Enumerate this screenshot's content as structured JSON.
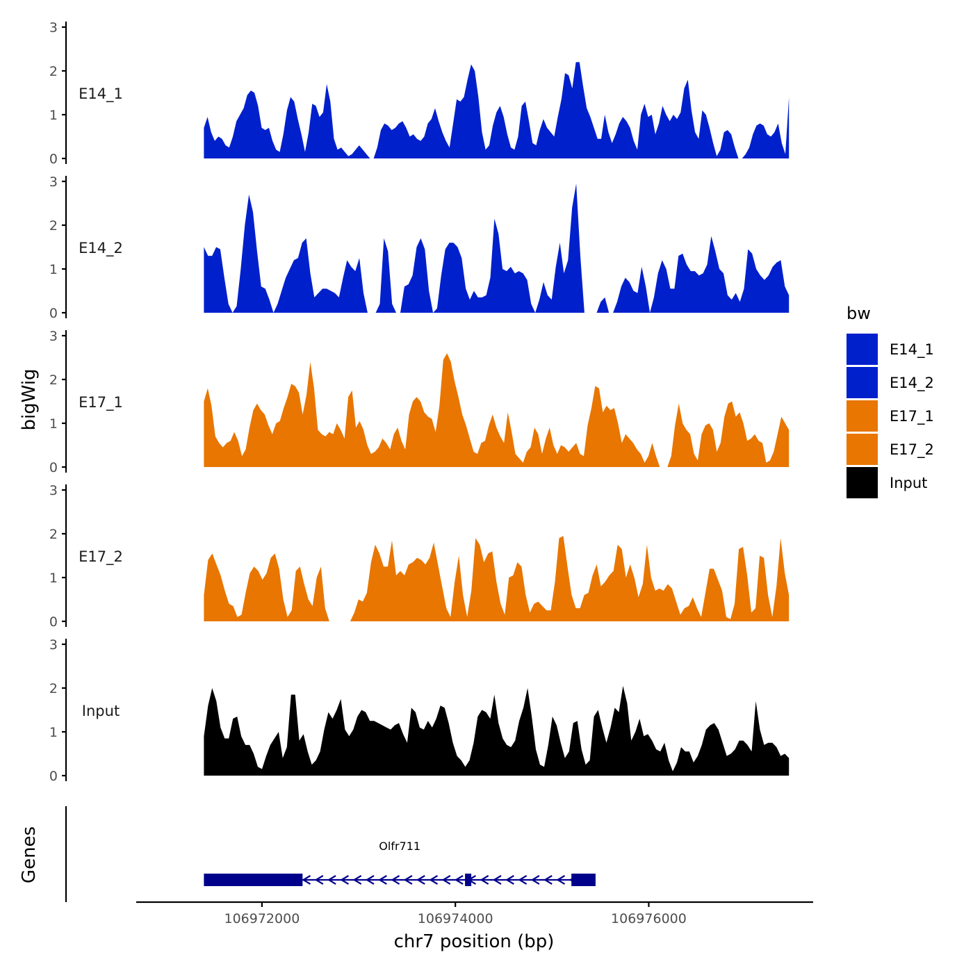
{
  "chart_data": {
    "type": "area",
    "chromosome": "chr7",
    "x_range": [
      106971400,
      106977450
    ],
    "xlim": [
      106970700,
      106977700
    ],
    "x_ticks": [
      106972000,
      106974000,
      106976000
    ],
    "x_tick_labels": [
      "106972000",
      "106974000",
      "106976000"
    ],
    "xlabel": "chr7 position (bp)",
    "ylabel": "bigWig",
    "ylim": [
      0,
      3
    ],
    "y_ticks": [
      0,
      1,
      2,
      3
    ],
    "y_tick_labels": [
      "0",
      "1",
      "2",
      "3"
    ],
    "track_panel_label": "Genes",
    "legend": {
      "title": "bw",
      "entries": [
        {
          "label": "E14_1",
          "color": "#0020CC"
        },
        {
          "label": "E14_2",
          "color": "#0020CC"
        },
        {
          "label": "E17_1",
          "color": "#E87600"
        },
        {
          "label": "E17_2",
          "color": "#E87600"
        },
        {
          "label": "Input",
          "color": "#000000"
        }
      ]
    },
    "series": [
      {
        "name": "E14_1",
        "color": "#0020CC",
        "values": [
          0.7,
          0.95,
          0.6,
          0.4,
          0.5,
          0.45,
          0.3,
          0.25,
          0.5,
          0.85,
          1.0,
          1.15,
          1.45,
          1.55,
          1.5,
          1.2,
          0.7,
          0.65,
          0.7,
          0.4,
          0.2,
          0.15,
          0.55,
          1.1,
          1.4,
          1.3,
          0.9,
          0.55,
          0.15,
          0.6,
          1.25,
          1.2,
          0.95,
          1.05,
          1.7,
          1.3,
          0.45,
          0.2,
          0.25,
          0.15,
          0.05,
          0.1,
          0.2,
          0.3,
          0.2,
          0.1,
          0.0,
          0.0,
          0.25,
          0.65,
          0.8,
          0.75,
          0.65,
          0.7,
          0.8,
          0.85,
          0.7,
          0.5,
          0.55,
          0.45,
          0.4,
          0.5,
          0.8,
          0.9,
          1.15,
          0.85,
          0.6,
          0.4,
          0.25,
          0.8,
          1.35,
          1.3,
          1.4,
          1.8,
          2.15,
          2.0,
          1.4,
          0.6,
          0.2,
          0.3,
          0.75,
          1.05,
          1.2,
          0.95,
          0.55,
          0.25,
          0.2,
          0.5,
          1.2,
          1.3,
          0.85,
          0.35,
          0.3,
          0.65,
          0.9,
          0.7,
          0.6,
          0.5,
          0.95,
          1.35,
          1.95,
          1.9,
          1.6,
          2.2,
          2.2,
          1.65,
          1.15,
          0.95,
          0.7,
          0.45,
          0.45,
          1.0,
          0.6,
          0.35,
          0.55,
          0.8,
          0.95,
          0.85,
          0.7,
          0.4,
          0.2,
          1.0,
          1.25,
          0.95,
          1.0,
          0.55,
          0.8,
          1.2,
          1.0,
          0.85,
          1.0,
          0.9,
          1.05,
          1.6,
          1.8,
          1.1,
          0.6,
          0.45,
          1.1,
          1.0,
          0.7,
          0.35,
          0.05,
          0.2,
          0.6,
          0.65,
          0.55,
          0.25,
          0.0,
          0.0,
          0.1,
          0.25,
          0.55,
          0.75,
          0.8,
          0.75,
          0.55,
          0.5,
          0.6,
          0.8,
          0.35,
          0.1,
          1.4
        ]
      },
      {
        "name": "E14_2",
        "color": "#0020CC",
        "values": [
          1.5,
          1.3,
          1.3,
          1.5,
          1.45,
          0.8,
          0.2,
          0.0,
          0.15,
          1.0,
          2.0,
          2.7,
          2.3,
          1.4,
          0.6,
          0.55,
          0.3,
          0.0,
          0.2,
          0.5,
          0.8,
          1.0,
          1.2,
          1.25,
          1.6,
          1.7,
          0.9,
          0.35,
          0.45,
          0.55,
          0.55,
          0.5,
          0.45,
          0.35,
          0.8,
          1.2,
          1.05,
          0.95,
          1.25,
          0.45,
          0.0,
          0.0,
          0.0,
          0.2,
          1.7,
          1.4,
          0.2,
          0.0,
          0.0,
          0.6,
          0.65,
          0.85,
          1.5,
          1.7,
          1.45,
          0.5,
          0.0,
          0.1,
          0.85,
          1.45,
          1.6,
          1.6,
          1.5,
          1.25,
          0.55,
          0.3,
          0.5,
          0.35,
          0.35,
          0.4,
          0.8,
          2.15,
          1.8,
          1.0,
          0.95,
          1.05,
          0.9,
          0.95,
          0.9,
          0.75,
          0.2,
          0.0,
          0.3,
          0.7,
          0.4,
          0.3,
          1.05,
          1.6,
          0.9,
          1.2,
          2.4,
          2.95,
          1.3,
          0.0,
          0.0,
          0.0,
          0.0,
          0.25,
          0.35,
          0.0,
          0.0,
          0.25,
          0.6,
          0.8,
          0.7,
          0.5,
          0.45,
          1.05,
          0.6,
          0.0,
          0.35,
          0.9,
          1.2,
          1.0,
          0.55,
          0.55,
          1.3,
          1.35,
          1.1,
          0.95,
          0.95,
          0.85,
          0.9,
          1.1,
          1.75,
          1.4,
          1.0,
          0.9,
          0.4,
          0.3,
          0.45,
          0.25,
          0.55,
          1.45,
          1.35,
          1.0,
          0.85,
          0.75,
          0.85,
          1.05,
          1.15,
          1.2,
          0.6,
          0.4
        ]
      },
      {
        "name": "E17_1",
        "color": "#E87600",
        "values": [
          1.5,
          1.8,
          1.4,
          0.7,
          0.55,
          0.45,
          0.55,
          0.6,
          0.8,
          0.6,
          0.25,
          0.4,
          0.9,
          1.3,
          1.45,
          1.3,
          1.2,
          0.95,
          0.75,
          1.0,
          1.05,
          1.35,
          1.6,
          1.9,
          1.85,
          1.7,
          1.2,
          1.65,
          2.4,
          1.8,
          0.85,
          0.75,
          0.7,
          0.8,
          0.75,
          1.0,
          0.85,
          0.65,
          1.6,
          1.75,
          0.9,
          1.05,
          0.85,
          0.5,
          0.3,
          0.35,
          0.45,
          0.65,
          0.55,
          0.4,
          0.75,
          0.9,
          0.6,
          0.4,
          1.2,
          1.5,
          1.6,
          1.5,
          1.25,
          1.15,
          1.1,
          0.8,
          1.4,
          2.45,
          2.6,
          2.4,
          1.95,
          1.6,
          1.2,
          0.95,
          0.65,
          0.35,
          0.3,
          0.55,
          0.6,
          0.95,
          1.2,
          0.9,
          0.7,
          0.55,
          1.25,
          0.8,
          0.3,
          0.2,
          0.1,
          0.35,
          0.45,
          0.9,
          0.75,
          0.3,
          0.65,
          0.9,
          0.5,
          0.3,
          0.5,
          0.45,
          0.35,
          0.45,
          0.55,
          0.3,
          0.25,
          0.95,
          1.35,
          1.85,
          1.8,
          1.25,
          1.4,
          1.3,
          1.35,
          1.0,
          0.55,
          0.75,
          0.65,
          0.55,
          0.4,
          0.3,
          0.1,
          0.25,
          0.55,
          0.25,
          0.0,
          0.0,
          0.0,
          0.25,
          0.95,
          1.45,
          1.0,
          0.85,
          0.75,
          0.3,
          0.15,
          0.75,
          0.95,
          1.0,
          0.85,
          0.35,
          0.55,
          1.15,
          1.45,
          1.5,
          1.15,
          1.25,
          1.0,
          0.6,
          0.65,
          0.75,
          0.6,
          0.55,
          0.1,
          0.15,
          0.35,
          0.75,
          1.15,
          1.0,
          0.85
        ]
      },
      {
        "name": "E17_2",
        "color": "#E87600",
        "values": [
          0.6,
          1.4,
          1.55,
          1.3,
          1.05,
          0.7,
          0.4,
          0.35,
          0.1,
          0.15,
          0.65,
          1.1,
          1.25,
          1.15,
          0.95,
          1.1,
          1.45,
          1.55,
          1.2,
          0.5,
          0.1,
          0.25,
          1.15,
          1.25,
          0.85,
          0.5,
          0.35,
          1.0,
          1.25,
          0.3,
          0.0,
          0.0,
          0.0,
          0.0,
          0.0,
          0.0,
          0.2,
          0.5,
          0.45,
          0.65,
          1.35,
          1.75,
          1.55,
          1.25,
          1.25,
          1.85,
          1.05,
          1.15,
          1.05,
          1.3,
          1.35,
          1.45,
          1.4,
          1.3,
          1.45,
          1.8,
          1.3,
          0.8,
          0.3,
          0.1,
          0.9,
          1.5,
          0.6,
          0.1,
          0.7,
          1.9,
          1.75,
          1.35,
          1.55,
          1.6,
          0.9,
          0.4,
          0.15,
          1.0,
          1.05,
          1.35,
          1.25,
          0.6,
          0.2,
          0.4,
          0.45,
          0.35,
          0.25,
          0.25,
          0.9,
          1.9,
          1.95,
          1.25,
          0.6,
          0.3,
          0.3,
          0.6,
          0.65,
          1.05,
          1.3,
          0.8,
          0.9,
          1.05,
          1.15,
          1.75,
          1.65,
          1.0,
          1.3,
          1.0,
          0.55,
          0.85,
          1.75,
          1.0,
          0.7,
          0.75,
          0.7,
          0.85,
          0.75,
          0.45,
          0.15,
          0.3,
          0.35,
          0.55,
          0.3,
          0.1,
          0.65,
          1.2,
          1.2,
          0.95,
          0.7,
          0.1,
          0.05,
          0.4,
          1.65,
          1.7,
          1.05,
          0.2,
          0.3,
          1.5,
          1.45,
          0.6,
          0.1,
          0.8,
          1.9,
          1.1,
          0.6
        ]
      },
      {
        "name": "Input",
        "color": "#000000",
        "values": [
          0.9,
          1.6,
          2.0,
          1.7,
          1.1,
          0.85,
          0.85,
          1.3,
          1.35,
          0.9,
          0.7,
          0.7,
          0.5,
          0.2,
          0.15,
          0.45,
          0.7,
          0.85,
          1.0,
          0.4,
          0.65,
          1.85,
          1.85,
          0.8,
          0.95,
          0.55,
          0.25,
          0.35,
          0.55,
          1.05,
          1.45,
          1.3,
          1.5,
          1.75,
          1.05,
          0.9,
          1.05,
          1.35,
          1.5,
          1.45,
          1.25,
          1.25,
          1.2,
          1.15,
          1.1,
          1.05,
          1.15,
          1.2,
          0.95,
          0.75,
          1.55,
          1.45,
          1.1,
          1.05,
          1.25,
          1.1,
          1.3,
          1.6,
          1.55,
          1.2,
          0.75,
          0.45,
          0.35,
          0.2,
          0.35,
          0.75,
          1.35,
          1.5,
          1.45,
          1.3,
          1.85,
          1.2,
          0.85,
          0.7,
          0.65,
          0.8,
          1.25,
          1.55,
          2.0,
          1.35,
          0.6,
          0.25,
          0.2,
          0.7,
          1.35,
          1.15,
          0.75,
          0.4,
          0.55,
          1.2,
          1.25,
          0.6,
          0.25,
          0.35,
          1.35,
          1.5,
          1.1,
          0.75,
          1.1,
          1.55,
          1.45,
          2.05,
          1.65,
          0.8,
          1.0,
          1.3,
          0.9,
          0.95,
          0.8,
          0.6,
          0.55,
          0.75,
          0.35,
          0.1,
          0.3,
          0.65,
          0.55,
          0.55,
          0.3,
          0.45,
          0.7,
          1.05,
          1.15,
          1.2,
          1.05,
          0.75,
          0.45,
          0.5,
          0.6,
          0.8,
          0.8,
          0.7,
          0.55,
          1.7,
          1.05,
          0.7,
          0.75,
          0.75,
          0.65,
          0.45,
          0.5,
          0.4
        ]
      }
    ],
    "genes": [
      {
        "name": "Olfr711",
        "strand": "-",
        "start": 106971400,
        "end": 106975450,
        "exons": [
          [
            106971400,
            106972420
          ],
          [
            106974100,
            106974160
          ],
          [
            106975200,
            106975450
          ]
        ]
      }
    ]
  }
}
